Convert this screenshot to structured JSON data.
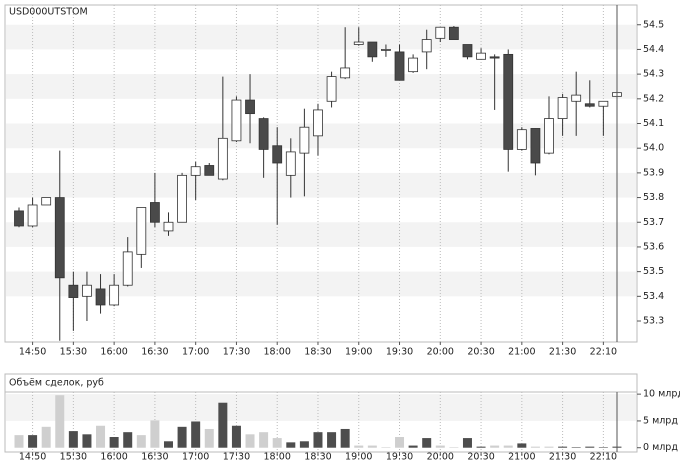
{
  "chart_data": [
    {
      "type": "candlestick",
      "title": "USD000UTSTOM",
      "categories": [
        null,
        "14:50",
        null,
        null,
        "15:30",
        null,
        null,
        "16:00",
        null,
        null,
        "16:30",
        null,
        null,
        "17:00",
        null,
        null,
        "17:30",
        null,
        null,
        "18:00",
        null,
        null,
        "18:30",
        null,
        null,
        "19:00",
        null,
        null,
        "19:30",
        null,
        null,
        "20:00",
        null,
        null,
        "20:30",
        null,
        null,
        "21:00",
        null,
        null,
        "21:30",
        null,
        null,
        "22:10",
        null
      ],
      "open": [
        53.746,
        53.685,
        53.77,
        53.8,
        53.445,
        53.4,
        53.43,
        53.365,
        53.445,
        53.57,
        53.78,
        53.665,
        53.7,
        53.89,
        53.93,
        53.875,
        54.03,
        54.195,
        54.12,
        54.01,
        53.89,
        53.98,
        54.05,
        54.19,
        54.285,
        54.42,
        54.43,
        54.4,
        54.39,
        54.31,
        54.39,
        54.445,
        54.49,
        54.42,
        54.36,
        54.37,
        54.38,
        53.995,
        54.08,
        53.98,
        54.12,
        54.19,
        54.18,
        54.17,
        54.21
      ],
      "high": [
        53.76,
        53.8,
        53.8,
        53.99,
        53.5,
        53.5,
        53.49,
        53.49,
        53.64,
        53.76,
        53.9,
        53.74,
        53.9,
        53.945,
        53.94,
        54.29,
        54.21,
        54.3,
        54.125,
        54.085,
        54.04,
        54.16,
        54.18,
        54.31,
        54.49,
        54.49,
        54.43,
        54.42,
        54.42,
        54.38,
        54.48,
        54.49,
        54.495,
        54.42,
        54.405,
        54.38,
        54.4,
        54.085,
        54.08,
        54.21,
        54.22,
        54.31,
        54.275,
        54.19,
        54.23
      ],
      "low": [
        53.68,
        53.68,
        53.77,
        53.22,
        53.26,
        53.3,
        53.33,
        53.36,
        53.44,
        53.515,
        53.68,
        53.645,
        53.7,
        53.79,
        53.89,
        53.87,
        54.025,
        54.02,
        53.88,
        53.69,
        53.8,
        53.805,
        53.97,
        54.165,
        54.28,
        54.415,
        54.35,
        54.37,
        54.275,
        54.305,
        54.32,
        54.43,
        54.44,
        54.36,
        54.36,
        54.155,
        53.905,
        53.99,
        53.89,
        53.975,
        54.05,
        54.05,
        54.165,
        54.05,
        54.205
      ],
      "close": [
        53.685,
        53.77,
        53.8,
        53.475,
        53.395,
        53.445,
        53.365,
        53.445,
        53.58,
        53.76,
        53.7,
        53.7,
        53.89,
        53.925,
        53.89,
        54.04,
        54.195,
        54.14,
        53.995,
        53.94,
        53.985,
        54.085,
        54.155,
        54.29,
        54.325,
        54.43,
        54.37,
        54.4,
        54.275,
        54.365,
        54.44,
        54.49,
        54.44,
        54.37,
        54.385,
        54.365,
        53.995,
        54.075,
        53.94,
        54.12,
        54.205,
        54.215,
        54.17,
        54.19,
        54.225
      ],
      "up_color": "#ffffff",
      "down_color": "#4a4a4a",
      "ylim": [
        53.215,
        54.58
      ],
      "yticks": [
        53.3,
        53.4,
        53.5,
        53.6,
        53.7,
        53.8,
        53.9,
        {
          "value": 54,
          "label": "54.0"
        },
        54.1,
        54.2,
        54.3,
        54.4,
        54.5
      ],
      "grid": true
    },
    {
      "type": "bar",
      "title": "Объём сделок, руб",
      "categories": [
        null,
        "14:50",
        null,
        null,
        "15:30",
        null,
        null,
        "16:00",
        null,
        null,
        "16:30",
        null,
        null,
        "17:00",
        null,
        null,
        "17:30",
        null,
        null,
        "18:00",
        null,
        null,
        "18:30",
        null,
        null,
        "19:00",
        null,
        null,
        "19:30",
        null,
        null,
        "20:00",
        null,
        null,
        "20:30",
        null,
        null,
        "21:00",
        null,
        null,
        "21:30",
        null,
        null,
        "22:10",
        null
      ],
      "values": [
        2.35,
        2.35,
        3.9,
        9.8,
        3.1,
        2.5,
        4.1,
        2.0,
        2.9,
        2.35,
        5.1,
        1.2,
        3.9,
        4.9,
        3.5,
        8.4,
        4.1,
        2.5,
        2.9,
        1.8,
        1.0,
        1.2,
        2.9,
        2.9,
        3.5,
        0.4,
        0.4,
        0.1,
        2.0,
        0.4,
        1.8,
        0.4,
        0.1,
        1.8,
        0.2,
        0.4,
        0.4,
        0.8,
        0.2,
        0.2,
        0.2,
        0.1,
        0.2,
        0.1,
        0.2
      ],
      "colors": [
        "#cfcfcf",
        "#4d4d4d",
        "#cfcfcf",
        "#cfcfcf",
        "#4d4d4d",
        "#4d4d4d",
        "#cfcfcf",
        "#4d4d4d",
        "#4d4d4d",
        "#cfcfcf",
        "#cfcfcf",
        "#4d4d4d",
        "#4d4d4d",
        "#4d4d4d",
        "#cfcfcf",
        "#4d4d4d",
        "#4d4d4d",
        "#cfcfcf",
        "#cfcfcf",
        "#cfcfcf",
        "#4d4d4d",
        "#4d4d4d",
        "#4d4d4d",
        "#4d4d4d",
        "#4d4d4d",
        "#cfcfcf",
        "#cfcfcf",
        "#cfcfcf",
        "#cfcfcf",
        "#4d4d4d",
        "#4d4d4d",
        "#cfcfcf",
        "#cfcfcf",
        "#4d4d4d",
        "#4d4d4d",
        "#cfcfcf",
        "#cfcfcf",
        "#4d4d4d",
        "#cfcfcf",
        "#cfcfcf",
        "#4d4d4d",
        "#4d4d4d",
        "#4d4d4d",
        "#4d4d4d",
        "#4d4d4d"
      ],
      "ylim": [
        -0.8,
        10.4
      ],
      "yticks": [
        {
          "value": 0,
          "label": "0 млрд"
        },
        {
          "value": 5,
          "label": "5 млрд"
        },
        {
          "value": 10,
          "label": "10 млрд"
        }
      ],
      "grid": true
    }
  ]
}
